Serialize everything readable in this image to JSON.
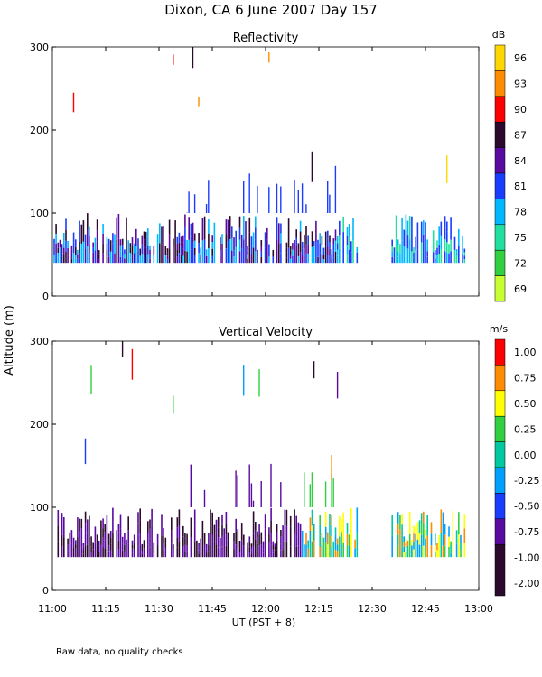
{
  "page": {
    "title": "Dixon, CA   6 June 2007   Day 157",
    "footnote": "Raw data, no quality checks"
  },
  "chart_data": [
    {
      "type": "heatmap",
      "title": "Reflectivity",
      "ylabel": "Altitude (m)",
      "xlabel": "UT  (PST + 8)",
      "x_range": [
        "11:00",
        "13:00"
      ],
      "x_ticks": [
        "11:00",
        "11:15",
        "11:30",
        "11:45",
        "12:00",
        "12:15",
        "12:30",
        "12:45",
        "13:00"
      ],
      "ylim": [
        0,
        300
      ],
      "y_ticks": [
        0,
        100,
        200,
        300
      ],
      "colorbar": {
        "unit": "dB",
        "labels": [
          "96",
          "93",
          "90",
          "87",
          "84",
          "81",
          "78",
          "75",
          "72",
          "69"
        ],
        "colors": [
          "#ffd700",
          "#ff8c00",
          "#ff0000",
          "#2b0a2e",
          "#5a0aa0",
          "#1a3cff",
          "#00b8ff",
          "#20e0a0",
          "#30d040",
          "#c8ff30"
        ]
      },
      "features": [
        "Dense echoes between 40 and 100 m from 11:00 to 12:25 and 12:35 to 12:55",
        "Gap with no echoes near 12:25-12:35 below 100 m",
        "Scattered echoes up to 300 m between 11:40 and 12:15"
      ]
    },
    {
      "type": "heatmap",
      "title": "Vertical Velocity",
      "ylabel": "Altitude (m)",
      "xlabel": "UT  (PST + 8)",
      "x_range": [
        "11:00",
        "13:00"
      ],
      "x_ticks": [
        "11:00",
        "11:15",
        "11:30",
        "11:45",
        "12:00",
        "12:15",
        "12:30",
        "12:45",
        "13:00"
      ],
      "ylim": [
        0,
        300
      ],
      "y_ticks": [
        0,
        100,
        200,
        300
      ],
      "colorbar": {
        "unit": "m/s",
        "labels": [
          "1.00",
          "0.75",
          "0.50",
          "0.25",
          "0.00",
          "-0.25",
          "-0.50",
          "-0.75",
          "-1.00",
          "-2.00"
        ],
        "colors": [
          "#ff0000",
          "#ff8c00",
          "#ffff00",
          "#30d040",
          "#00c8a0",
          "#00a0ff",
          "#1a3cff",
          "#5a0aa0",
          "#2b0a2e",
          "#2b0a2e"
        ]
      },
      "features": [
        "Mostly downward (dark) velocities below 80 m before 12:10",
        "Upward (yellow) velocities below 100 m after 12:10"
      ]
    }
  ]
}
